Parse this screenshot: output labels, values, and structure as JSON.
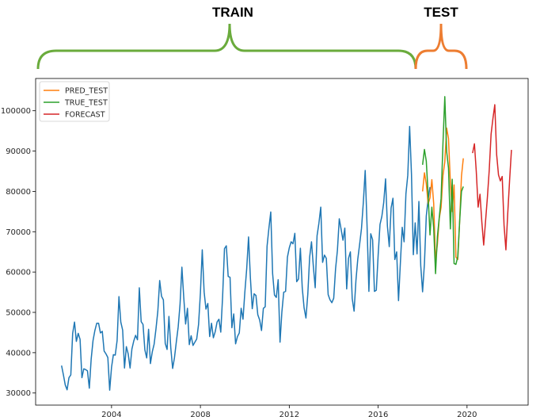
{
  "chart_data": {
    "type": "line",
    "x_axis": {
      "kind": "date",
      "range": [
        "2000-08-01",
        "2022-10-01"
      ],
      "ticks": [
        {
          "date": "2004-01-01",
          "label": "2004"
        },
        {
          "date": "2008-01-01",
          "label": "2008"
        },
        {
          "date": "2012-01-01",
          "label": "2012"
        },
        {
          "date": "2016-01-01",
          "label": "2016"
        },
        {
          "date": "2020-01-01",
          "label": "2020"
        }
      ]
    },
    "y_axis": {
      "range": [
        27000,
        108000
      ],
      "ticks": [
        {
          "value": 30000,
          "label": "30000"
        },
        {
          "value": 40000,
          "label": "40000"
        },
        {
          "value": 50000,
          "label": "50000"
        },
        {
          "value": 60000,
          "label": "60000"
        },
        {
          "value": 70000,
          "label": "70000"
        },
        {
          "value": 80000,
          "label": "80000"
        },
        {
          "value": 90000,
          "label": "90000"
        },
        {
          "value": 100000,
          "label": "100000"
        }
      ]
    },
    "grid": false,
    "legend": {
      "placement": "top-left",
      "entries": [
        {
          "label": "PRED_TEST",
          "color": "#ff7f0e"
        },
        {
          "label": "TRUE_TEST",
          "color": "#2ca02c"
        },
        {
          "label": "FORECAST",
          "color": "#d62728"
        }
      ]
    },
    "series": [
      {
        "color": "#1f77b4",
        "start": "2001-10-01",
        "step_months": 1,
        "values": [
          36800,
          34500,
          32000,
          30800,
          33800,
          34500,
          44800,
          47600,
          42800,
          44800,
          43300,
          33800,
          36000,
          35800,
          35500,
          31200,
          38400,
          43000,
          45500,
          47300,
          47300,
          44900,
          45300,
          40400,
          39700,
          38800,
          30700,
          36400,
          39500,
          39400,
          43000,
          53900,
          47600,
          45600,
          36200,
          41500,
          39700,
          36200,
          40900,
          42900,
          44300,
          43200,
          56100,
          47700,
          47000,
          40700,
          38700,
          45800,
          37300,
          40200,
          42100,
          45900,
          50300,
          57900,
          54000,
          53100,
          42300,
          40800,
          49000,
          41200,
          36100,
          38800,
          42700,
          46400,
          52000,
          61200,
          53700,
          47100,
          51000,
          42000,
          44200,
          41800,
          42600,
          43400,
          47000,
          54800,
          65500,
          55100,
          50800,
          52200,
          44000,
          47300,
          43700,
          45200,
          47600,
          48300,
          45100,
          54000,
          65800,
          66500,
          58900,
          58700,
          46200,
          49600,
          42200,
          44000,
          44900,
          51000,
          48300,
          55000,
          60800,
          68700,
          58500,
          50900,
          54600,
          54200,
          49400,
          48100,
          45500,
          51000,
          51400,
          66400,
          70900,
          74900,
          59600,
          54300,
          53700,
          58100,
          42600,
          50100,
          55000,
          55200,
          63700,
          66000,
          67500,
          67000,
          69600,
          57600,
          58300,
          65900,
          56100,
          51100,
          48600,
          54500,
          63700,
          67500,
          61400,
          56100,
          69000,
          72100,
          76100,
          62400,
          64200,
          63400,
          54400,
          53100,
          52400,
          53500,
          60800,
          65400,
          73200,
          70600,
          67900,
          70900,
          55800,
          63400,
          65000,
          53400,
          50300,
          57900,
          63200,
          66900,
          70800,
          77300,
          85200,
          71600,
          55200,
          69500,
          68000,
          55200,
          55500,
          64200,
          71800,
          73800,
          77200,
          83100,
          71400,
          66300,
          75900,
          78300,
          63100,
          65000,
          52900,
          62200,
          71100,
          67500,
          79400,
          84000,
          96100,
          84300,
          64300,
          72200,
          64500,
          77500,
          61600,
          55100,
          62100,
          73900,
          78100,
          81100
        ]
      },
      {
        "name": "PRED_TEST",
        "color": "#ff7f0e",
        "start": "2018-01-01",
        "step_months": 1,
        "values": [
          80000,
          84600,
          81900,
          76900,
          78400,
          82900,
          77000,
          62900,
          66900,
          73300,
          76100,
          83900,
          87300,
          95700,
          93100,
          82300,
          75000,
          81600,
          63700,
          63100,
          72400,
          83800,
          88200
        ]
      },
      {
        "name": "TRUE_TEST",
        "color": "#2ca02c",
        "start": "2018-01-01",
        "step_months": 1,
        "values": [
          86600,
          90400,
          87500,
          79100,
          69200,
          76100,
          70900,
          59600,
          68800,
          73500,
          78300,
          91800,
          103500,
          89900,
          85800,
          70700,
          83000,
          62100,
          61900,
          63800,
          72400,
          80000,
          81200
        ]
      },
      {
        "name": "FORECAST",
        "color": "#d62728",
        "start": "2020-04-01",
        "step_months": 1,
        "values": [
          89500,
          91800,
          84900,
          76100,
          79300,
          72400,
          66700,
          72600,
          78500,
          85300,
          94200,
          98100,
          101500,
          89100,
          84100,
          82600,
          83700,
          71600,
          65500,
          74600,
          82800,
          90300
        ]
      }
    ]
  },
  "annotations": {
    "train_label": "TRAIN",
    "test_label": "TEST",
    "train_color": "#6aab3c",
    "test_color": "#ed7d31"
  }
}
